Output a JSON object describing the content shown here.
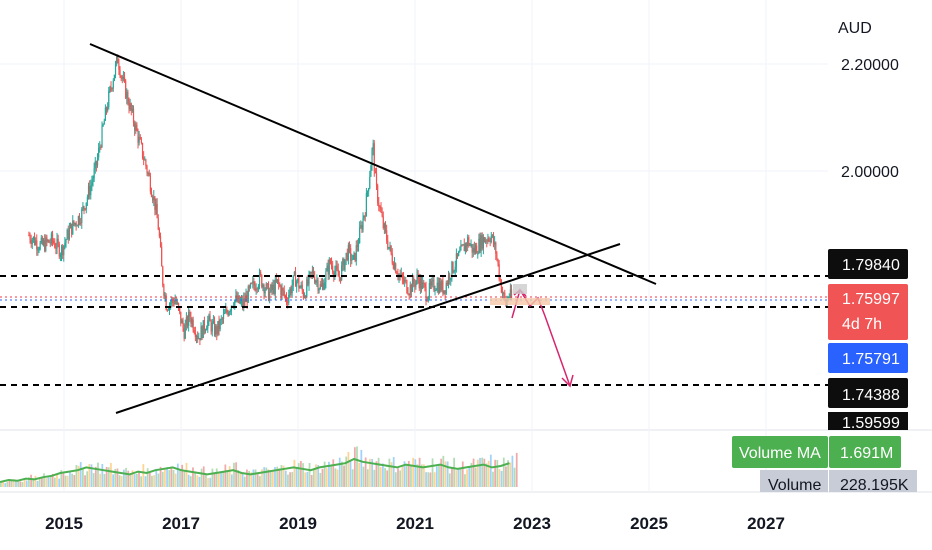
{
  "chart_data": {
    "type": "candlestick",
    "currency": "AUD",
    "x_ticks": [
      "2015",
      "2017",
      "2019",
      "2021",
      "2023",
      "2025",
      "2027"
    ],
    "y_ticks": [
      "2.20000",
      "2.00000"
    ],
    "price_badges": {
      "resistance": "1.79840",
      "last": "1.75997",
      "countdown": "4d 7h",
      "blue": "1.75791",
      "support1": "1.74388",
      "support2": "1.59599"
    },
    "volume": {
      "ma_label": "Volume MA",
      "ma_value": "1.691M",
      "label": "Volume",
      "value": "228.195K"
    },
    "price_path": [
      [
        2014.4,
        1.88
      ],
      [
        2014.6,
        1.86
      ],
      [
        2014.8,
        1.87
      ],
      [
        2014.95,
        1.85
      ],
      [
        2015.1,
        1.89
      ],
      [
        2015.3,
        1.92
      ],
      [
        2015.45,
        1.97
      ],
      [
        2015.55,
        2.01
      ],
      [
        2015.65,
        2.07
      ],
      [
        2015.75,
        2.13
      ],
      [
        2015.85,
        2.18
      ],
      [
        2015.92,
        2.21
      ],
      [
        2016.0,
        2.17
      ],
      [
        2016.15,
        2.11
      ],
      [
        2016.3,
        2.05
      ],
      [
        2016.45,
        1.99
      ],
      [
        2016.55,
        1.94
      ],
      [
        2016.62,
        1.89
      ],
      [
        2016.68,
        1.8
      ],
      [
        2016.75,
        1.75
      ],
      [
        2016.9,
        1.76
      ],
      [
        2017.05,
        1.7
      ],
      [
        2017.15,
        1.73
      ],
      [
        2017.3,
        1.69
      ],
      [
        2017.45,
        1.72
      ],
      [
        2017.6,
        1.7
      ],
      [
        2017.75,
        1.73
      ],
      [
        2017.9,
        1.76
      ],
      [
        2018.05,
        1.75
      ],
      [
        2018.2,
        1.78
      ],
      [
        2018.35,
        1.8
      ],
      [
        2018.5,
        1.77
      ],
      [
        2018.65,
        1.79
      ],
      [
        2018.8,
        1.76
      ],
      [
        2018.95,
        1.8
      ],
      [
        2019.1,
        1.77
      ],
      [
        2019.25,
        1.81
      ],
      [
        2019.4,
        1.78
      ],
      [
        2019.55,
        1.83
      ],
      [
        2019.7,
        1.8
      ],
      [
        2019.85,
        1.85
      ],
      [
        2019.95,
        1.83
      ],
      [
        2020.05,
        1.88
      ],
      [
        2020.15,
        1.93
      ],
      [
        2020.22,
        1.99
      ],
      [
        2020.28,
        2.05
      ],
      [
        2020.33,
        1.97
      ],
      [
        2020.45,
        1.9
      ],
      [
        2020.6,
        1.84
      ],
      [
        2020.75,
        1.8
      ],
      [
        2020.9,
        1.78
      ],
      [
        2021.05,
        1.8
      ],
      [
        2021.2,
        1.77
      ],
      [
        2021.35,
        1.79
      ],
      [
        2021.5,
        1.78
      ],
      [
        2021.6,
        1.81
      ],
      [
        2021.75,
        1.84
      ],
      [
        2021.9,
        1.87
      ],
      [
        2022.0,
        1.85
      ],
      [
        2022.15,
        1.87
      ],
      [
        2022.3,
        1.88
      ],
      [
        2022.38,
        1.85
      ],
      [
        2022.45,
        1.8
      ],
      [
        2022.5,
        1.77
      ],
      [
        2022.55,
        1.75
      ],
      [
        2022.6,
        1.77
      ],
      [
        2022.65,
        1.76
      ]
    ],
    "volume_values": [
      0.18,
      0.25,
      0.22,
      0.3,
      0.27,
      0.35,
      0.4,
      0.5,
      0.55,
      0.6,
      0.7,
      0.65,
      0.6,
      0.55,
      0.5,
      0.45,
      0.55,
      0.5,
      0.6,
      0.65,
      0.7,
      0.6,
      0.55,
      0.5,
      0.45,
      0.5,
      0.55,
      0.6,
      0.5,
      0.45,
      0.5,
      0.55,
      0.6,
      0.65,
      0.7,
      0.65,
      0.6,
      0.7,
      0.75,
      0.8,
      0.85,
      1.0,
      0.9,
      0.85,
      0.8,
      0.75,
      0.7,
      0.8,
      0.75,
      0.7,
      0.75,
      0.8,
      0.7,
      0.65,
      0.7,
      0.75,
      0.8,
      0.7,
      0.75,
      0.85
    ]
  }
}
